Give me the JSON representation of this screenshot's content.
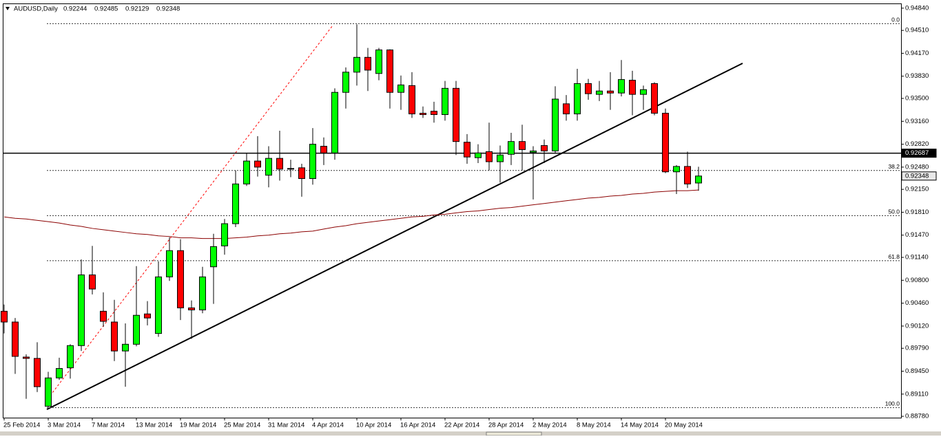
{
  "chart_data": {
    "type": "candlestick",
    "title": "AUDUSD,Daily",
    "categories": [
      "25 Feb 2014",
      null,
      null,
      null,
      "3 Mar 2014",
      null,
      null,
      null,
      "7 Mar 2014",
      null,
      null,
      null,
      "13 Mar 2014",
      null,
      null,
      null,
      "19 Mar 2014",
      null,
      null,
      null,
      "25 Mar 2014",
      null,
      null,
      null,
      "31 Mar 2014",
      null,
      null,
      null,
      "4 Apr 2014",
      null,
      null,
      null,
      "10 Apr 2014",
      null,
      null,
      null,
      "16 Apr 2014",
      null,
      null,
      null,
      "22 Apr 2014",
      null,
      null,
      null,
      "28 Apr 2014",
      null,
      null,
      null,
      "2 May 2014",
      null,
      null,
      null,
      "8 May 2014",
      null,
      null,
      null,
      "14 May 2014",
      null,
      null,
      null,
      "20 May 2014",
      null,
      null,
      null
    ],
    "open": [
      0.9034,
      0.9018,
      0.8966,
      0.8964,
      0.8893,
      0.8935,
      0.895,
      0.8983,
      0.9088,
      0.9034,
      0.9018,
      0.8975,
      0.8985,
      0.903,
      0.9001,
      0.9085,
      0.9124,
      0.9039,
      0.9036,
      0.91,
      0.9131,
      0.9164,
      0.9223,
      0.9257,
      0.9236,
      0.9261,
      0.9246,
      0.9247,
      0.9231,
      0.9279,
      0.9269,
      0.9359,
      0.9389,
      0.9411,
      0.9387,
      0.9422,
      0.9359,
      0.9369,
      0.9328,
      0.9331,
      0.9326,
      0.9365,
      0.9285,
      0.9262,
      0.9271,
      0.9256,
      0.9267,
      0.9286,
      0.927,
      0.928,
      0.9272,
      0.9342,
      0.9327,
      0.9372,
      0.9356,
      0.9361,
      0.9358,
      0.9377,
      0.9356,
      0.9372,
      0.9328,
      0.9241,
      0.9249,
      0.92244
    ],
    "high": [
      0.9044,
      0.9024,
      0.897,
      0.8988,
      0.8944,
      0.8965,
      0.8985,
      0.9111,
      0.9131,
      0.9062,
      0.9051,
      0.9016,
      0.9101,
      0.9049,
      0.9108,
      0.9144,
      0.9141,
      0.905,
      0.91,
      0.9149,
      0.9171,
      0.9243,
      0.9269,
      0.9294,
      0.9279,
      0.9302,
      0.9259,
      0.9253,
      0.9306,
      0.9292,
      0.9365,
      0.9396,
      0.946,
      0.9425,
      0.9425,
      0.9423,
      0.9384,
      0.9389,
      0.9338,
      0.9345,
      0.9376,
      0.9376,
      0.9297,
      0.9282,
      0.9314,
      0.928,
      0.9299,
      0.9311,
      0.9279,
      0.9289,
      0.9368,
      0.9355,
      0.9394,
      0.9379,
      0.9376,
      0.9389,
      0.9407,
      0.9391,
      0.9369,
      0.9374,
      0.9335,
      0.9251,
      0.9271,
      0.92485
    ],
    "low": [
      0.9001,
      0.8941,
      0.8904,
      0.8914,
      0.8891,
      0.8932,
      0.8934,
      0.8975,
      0.9059,
      0.9011,
      0.896,
      0.8922,
      0.8982,
      0.9013,
      0.8996,
      0.9079,
      0.9021,
      0.8993,
      0.9031,
      0.9045,
      0.9118,
      0.9159,
      0.922,
      0.9234,
      0.9218,
      0.9228,
      0.9233,
      0.9204,
      0.9222,
      0.9251,
      0.9259,
      0.9335,
      0.9369,
      0.9361,
      0.9377,
      0.9335,
      0.9333,
      0.9321,
      0.9321,
      0.9314,
      0.9317,
      0.9266,
      0.9253,
      0.9254,
      0.9243,
      0.9225,
      0.9251,
      0.9243,
      0.92,
      0.9254,
      0.9269,
      0.9317,
      0.9317,
      0.9348,
      0.9346,
      0.9333,
      0.9353,
      0.9325,
      0.9333,
      0.9325,
      0.9239,
      0.9208,
      0.9217,
      0.92129
    ],
    "close": [
      0.9018,
      0.8967,
      0.8964,
      0.8922,
      0.8935,
      0.8949,
      0.8983,
      0.9088,
      0.9067,
      0.9019,
      0.8975,
      0.8985,
      0.9028,
      0.9024,
      0.9085,
      0.9124,
      0.9039,
      0.9036,
      0.9085,
      0.913,
      0.9164,
      0.9223,
      0.9257,
      0.9248,
      0.9261,
      0.9245,
      0.9245,
      0.9231,
      0.9282,
      0.9269,
      0.9359,
      0.9389,
      0.9411,
      0.9392,
      0.9422,
      0.9359,
      0.937,
      0.9327,
      0.9326,
      0.9326,
      0.9365,
      0.9286,
      0.9263,
      0.9269,
      0.9256,
      0.9266,
      0.9286,
      0.9274,
      0.9272,
      0.9272,
      0.9349,
      0.9327,
      0.9372,
      0.9357,
      0.9361,
      0.9358,
      0.9378,
      0.9356,
      0.9363,
      0.9328,
      0.9241,
      0.9249,
      0.9223,
      0.92348
    ],
    "up_color": "#00ff00",
    "down_color": "#ff0000",
    "ma": [
      0.9174,
      0.9172,
      0.9171,
      0.9169,
      0.9167,
      0.9165,
      0.9162,
      0.916,
      0.9157,
      0.9155,
      0.9153,
      0.9151,
      0.9149,
      0.9148,
      0.9146,
      0.9145,
      0.9143,
      0.9143,
      0.9142,
      0.9142,
      0.9142,
      0.9143,
      0.9144,
      0.9146,
      0.9147,
      0.9149,
      0.915,
      0.9152,
      0.9153,
      0.9156,
      0.9159,
      0.9161,
      0.9164,
      0.9166,
      0.9168,
      0.917,
      0.9172,
      0.9174,
      0.9175,
      0.9177,
      0.9178,
      0.918,
      0.9182,
      0.9183,
      0.9185,
      0.9187,
      0.9188,
      0.919,
      0.9192,
      0.9194,
      0.9196,
      0.9198,
      0.92,
      0.9202,
      0.9203,
      0.9205,
      0.9206,
      0.9208,
      0.9209,
      0.9211,
      0.9212,
      0.9213,
      0.9213,
      0.9214
    ],
    "ma_color": "#8b0000",
    "hline": 0.92687,
    "fib": [
      {
        "value": 0.9461,
        "label": "0.0"
      },
      {
        "value": 0.9243,
        "label": "38.2"
      },
      {
        "value": 0.9176,
        "label": "50.0"
      },
      {
        "value": 0.9109,
        "label": "61.8"
      },
      {
        "value": 0.8891,
        "label": "100.0"
      }
    ],
    "ylim": [
      0.8876,
      0.9491
    ],
    "yticks": [
      {
        "value": 0.9484,
        "label": "0.94840"
      },
      {
        "value": 0.9451,
        "label": "0.94510"
      },
      {
        "value": 0.9417,
        "label": "0.94170"
      },
      {
        "value": 0.9383,
        "label": "0.93830"
      },
      {
        "value": 0.935,
        "label": "0.93500"
      },
      {
        "value": 0.9316,
        "label": "0.93160"
      },
      {
        "value": 0.9282,
        "label": "0.92820"
      },
      {
        "value": 0.9248,
        "label": "0.92480"
      },
      {
        "value": 0.9215,
        "label": "0.92150"
      },
      {
        "value": 0.9181,
        "label": "0.91810"
      },
      {
        "value": 0.9147,
        "label": "0.91470"
      },
      {
        "value": 0.9114,
        "label": "0.91140"
      },
      {
        "value": 0.908,
        "label": "0.90800"
      },
      {
        "value": 0.9046,
        "label": "0.90460"
      },
      {
        "value": 0.9012,
        "label": "0.90120"
      },
      {
        "value": 0.8979,
        "label": "0.89790"
      },
      {
        "value": 0.8945,
        "label": "0.89450"
      },
      {
        "value": 0.8911,
        "label": "0.89110"
      },
      {
        "value": 0.8878,
        "label": "0.88780"
      }
    ],
    "grid": false
  }
}
